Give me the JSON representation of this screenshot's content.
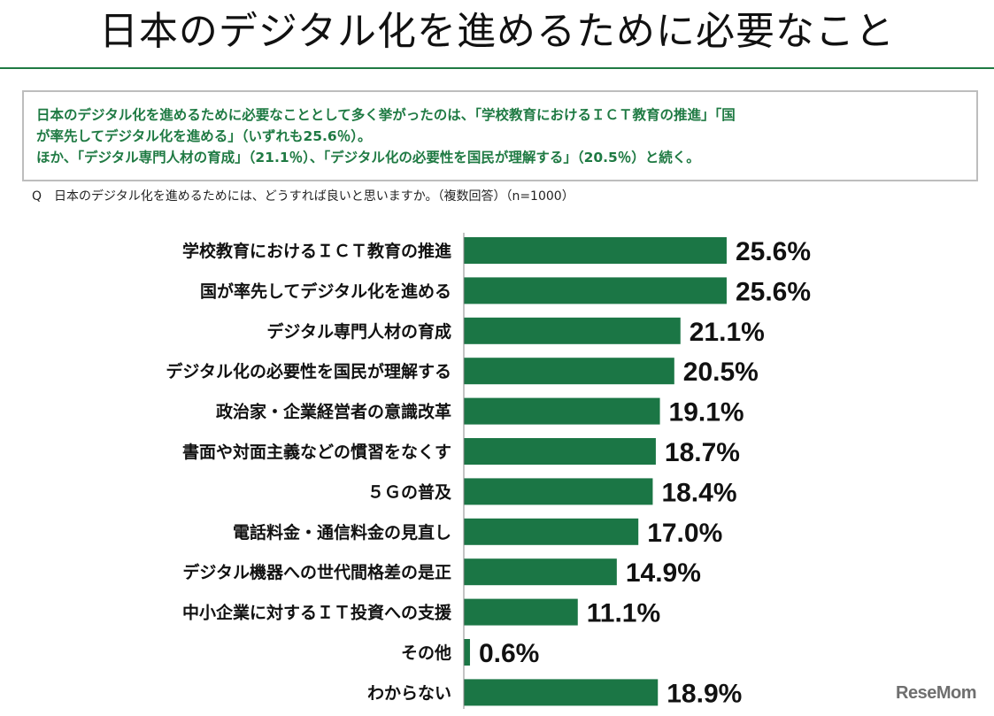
{
  "header": {
    "title": "日本のデジタル化を進めるために必要なこと"
  },
  "summary": {
    "line1": "日本のデジタル化を進めるために必要なこととして多く挙がったのは、「学校教育におけるＩＣＴ教育の推進」「国",
    "line2": "が率先してデジタル化を進める」（いずれも25.6％）。",
    "line3": "ほか、「デジタル専門人材の育成」（21.1％）、「デジタル化の必要性を国民が理解する」（20.5％）と続く。"
  },
  "question": "Q　日本のデジタル化を進めるためには、どうすれば良いと思いますか。（複数回答）（n=1000）",
  "colors": {
    "bar": "#1b7645",
    "accent_text": "#1f7a43",
    "box_border": "#bdbdbd"
  },
  "chart_data": {
    "type": "bar",
    "orientation": "horizontal",
    "categories": [
      "学校教育におけるＩＣＴ教育の推進",
      "国が率先してデジタル化を進める",
      "デジタル専門人材の育成",
      "デジタル化の必要性を国民が理解する",
      "政治家・企業経営者の意識改革",
      "書面や対面主義などの慣習をなくす",
      "５Ｇの普及",
      "電話料金・通信料金の見直し",
      "デジタル機器への世代間格差の是正",
      "中小企業に対するＩＴ投資への支援",
      "その他",
      "わからない"
    ],
    "values": [
      25.6,
      25.6,
      21.1,
      20.5,
      19.1,
      18.7,
      18.4,
      17.0,
      14.9,
      11.1,
      0.6,
      18.9
    ],
    "value_labels": [
      "25.6%",
      "25.6%",
      "21.1%",
      "20.5%",
      "19.1%",
      "18.7%",
      "18.4%",
      "17.0%",
      "14.9%",
      "11.1%",
      "0.6%",
      "18.9%"
    ],
    "xlim": [
      0,
      100
    ],
    "grid": false,
    "legend": "none"
  },
  "logo": {
    "text": "ReseMom"
  }
}
